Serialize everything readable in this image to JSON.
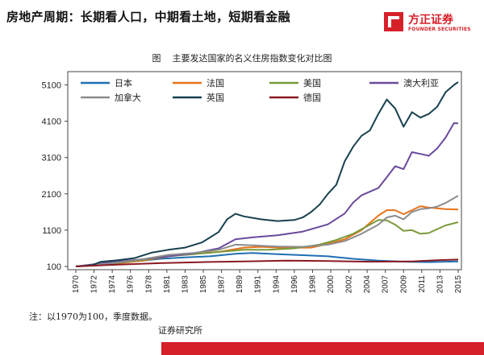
{
  "header": {
    "title": "房地产周期：长期看人口，中期看土地，短期看金融",
    "logo_name": "方正证券",
    "logo_sub": "FOUNDER SECURITIES"
  },
  "caption": {
    "label": "图",
    "text": "主要发达国家的名义住房指数变化对比图"
  },
  "note": "注：以1970为100，季度数据。",
  "source": "证券研究所",
  "colors": {
    "brand": "#d6202a"
  },
  "chart_data": {
    "type": "line",
    "title": "主要发达国家的名义住房指数变化对比图",
    "xlabel": "",
    "ylabel": "",
    "xlim": [
      1970,
      2015.5
    ],
    "ylim": [
      100,
      5400
    ],
    "yticks": [
      100,
      1100,
      2100,
      3100,
      4100,
      5100
    ],
    "xticks": [
      "1970",
      "1972",
      "1974",
      "1976",
      "1978",
      "1981",
      "1983",
      "1985",
      "1987",
      "1989",
      "1991",
      "1994",
      "1996",
      "1998",
      "2000",
      "2002",
      "2004",
      "2007",
      "2009",
      "2011",
      "2013",
      "2015"
    ],
    "legend_position": "top-left",
    "series": [
      {
        "name": "日本",
        "color": "#1f6fb2",
        "points": [
          [
            1970,
            100
          ],
          [
            1972,
            130
          ],
          [
            1974,
            200
          ],
          [
            1976,
            230
          ],
          [
            1978,
            260
          ],
          [
            1980,
            310
          ],
          [
            1983,
            350
          ],
          [
            1986,
            380
          ],
          [
            1989,
            450
          ],
          [
            1991,
            470
          ],
          [
            1994,
            440
          ],
          [
            1997,
            410
          ],
          [
            2000,
            380
          ],
          [
            2003,
            310
          ],
          [
            2006,
            260
          ],
          [
            2009,
            230
          ],
          [
            2012,
            220
          ],
          [
            2015.5,
            240
          ]
        ]
      },
      {
        "name": "法国",
        "color": "#e8731a",
        "points": [
          [
            1970,
            100
          ],
          [
            1974,
            160
          ],
          [
            1978,
            260
          ],
          [
            1981,
            380
          ],
          [
            1984,
            460
          ],
          [
            1987,
            500
          ],
          [
            1990,
            620
          ],
          [
            1992,
            640
          ],
          [
            1995,
            610
          ],
          [
            1998,
            620
          ],
          [
            2000,
            720
          ],
          [
            2002,
            850
          ],
          [
            2004,
            1100
          ],
          [
            2006,
            1500
          ],
          [
            2007,
            1650
          ],
          [
            2008,
            1650
          ],
          [
            2009,
            1540
          ],
          [
            2010,
            1650
          ],
          [
            2011,
            1760
          ],
          [
            2012,
            1720
          ],
          [
            2013,
            1700
          ],
          [
            2014,
            1680
          ],
          [
            2015.5,
            1670
          ]
        ]
      },
      {
        "name": "美国",
        "color": "#7a9a3a",
        "points": [
          [
            1970,
            100
          ],
          [
            1974,
            170
          ],
          [
            1978,
            280
          ],
          [
            1981,
            380
          ],
          [
            1984,
            440
          ],
          [
            1987,
            500
          ],
          [
            1990,
            560
          ],
          [
            1993,
            560
          ],
          [
            1996,
            600
          ],
          [
            1999,
            700
          ],
          [
            2001,
            830
          ],
          [
            2003,
            1000
          ],
          [
            2005,
            1250
          ],
          [
            2006,
            1380
          ],
          [
            2007,
            1370
          ],
          [
            2008,
            1250
          ],
          [
            2009,
            1080
          ],
          [
            2010,
            1100
          ],
          [
            2011,
            1000
          ],
          [
            2012,
            1020
          ],
          [
            2013,
            1130
          ],
          [
            2014,
            1230
          ],
          [
            2015.5,
            1320
          ]
        ]
      },
      {
        "name": "澳大利亚",
        "color": "#6a4a9c",
        "points": [
          [
            1970,
            100
          ],
          [
            1974,
            210
          ],
          [
            1978,
            300
          ],
          [
            1981,
            380
          ],
          [
            1984,
            460
          ],
          [
            1987,
            600
          ],
          [
            1989,
            850
          ],
          [
            1991,
            900
          ],
          [
            1994,
            960
          ],
          [
            1997,
            1060
          ],
          [
            2000,
            1260
          ],
          [
            2002,
            1560
          ],
          [
            2003,
            1860
          ],
          [
            2004,
            2060
          ],
          [
            2005,
            2160
          ],
          [
            2006,
            2260
          ],
          [
            2007,
            2560
          ],
          [
            2008,
            2860
          ],
          [
            2009,
            2780
          ],
          [
            2010,
            3250
          ],
          [
            2011,
            3200
          ],
          [
            2012,
            3150
          ],
          [
            2013,
            3350
          ],
          [
            2014,
            3650
          ],
          [
            2015,
            4050
          ],
          [
            2015.5,
            4040
          ]
        ]
      },
      {
        "name": "加拿大",
        "color": "#8c8c8c",
        "points": [
          [
            1970,
            100
          ],
          [
            1974,
            180
          ],
          [
            1978,
            300
          ],
          [
            1981,
            420
          ],
          [
            1984,
            470
          ],
          [
            1987,
            560
          ],
          [
            1989,
            700
          ],
          [
            1991,
            680
          ],
          [
            1994,
            650
          ],
          [
            1997,
            640
          ],
          [
            2000,
            700
          ],
          [
            2002,
            800
          ],
          [
            2004,
            1000
          ],
          [
            2006,
            1250
          ],
          [
            2007,
            1450
          ],
          [
            2008,
            1500
          ],
          [
            2009,
            1400
          ],
          [
            2010,
            1600
          ],
          [
            2011,
            1680
          ],
          [
            2012,
            1700
          ],
          [
            2013,
            1750
          ],
          [
            2014,
            1850
          ],
          [
            2015.5,
            2050
          ]
        ]
      },
      {
        "name": "英国",
        "color": "#17404f",
        "points": [
          [
            1970,
            100
          ],
          [
            1972,
            140
          ],
          [
            1973,
            230
          ],
          [
            1975,
            270
          ],
          [
            1977,
            330
          ],
          [
            1979,
            480
          ],
          [
            1981,
            560
          ],
          [
            1983,
            620
          ],
          [
            1985,
            760
          ],
          [
            1987,
            1050
          ],
          [
            1988,
            1400
          ],
          [
            1989,
            1550
          ],
          [
            1990,
            1480
          ],
          [
            1992,
            1400
          ],
          [
            1994,
            1350
          ],
          [
            1996,
            1380
          ],
          [
            1997,
            1450
          ],
          [
            1998,
            1600
          ],
          [
            1999,
            1800
          ],
          [
            2000,
            2100
          ],
          [
            2001,
            2350
          ],
          [
            2002,
            3000
          ],
          [
            2003,
            3400
          ],
          [
            2004,
            3700
          ],
          [
            2005,
            3850
          ],
          [
            2006,
            4300
          ],
          [
            2007,
            4700
          ],
          [
            2008,
            4450
          ],
          [
            2009,
            3950
          ],
          [
            2010,
            4350
          ],
          [
            2011,
            4200
          ],
          [
            2012,
            4300
          ],
          [
            2013,
            4500
          ],
          [
            2014,
            4900
          ],
          [
            2015,
            5100
          ],
          [
            2015.5,
            5180
          ]
        ]
      },
      {
        "name": "德国",
        "color": "#8a1a22",
        "points": [
          [
            1970,
            100
          ],
          [
            1975,
            150
          ],
          [
            1980,
            190
          ],
          [
            1985,
            220
          ],
          [
            1990,
            240
          ],
          [
            1995,
            260
          ],
          [
            2000,
            250
          ],
          [
            2005,
            230
          ],
          [
            2010,
            240
          ],
          [
            2013,
            270
          ],
          [
            2015.5,
            290
          ]
        ]
      }
    ]
  }
}
